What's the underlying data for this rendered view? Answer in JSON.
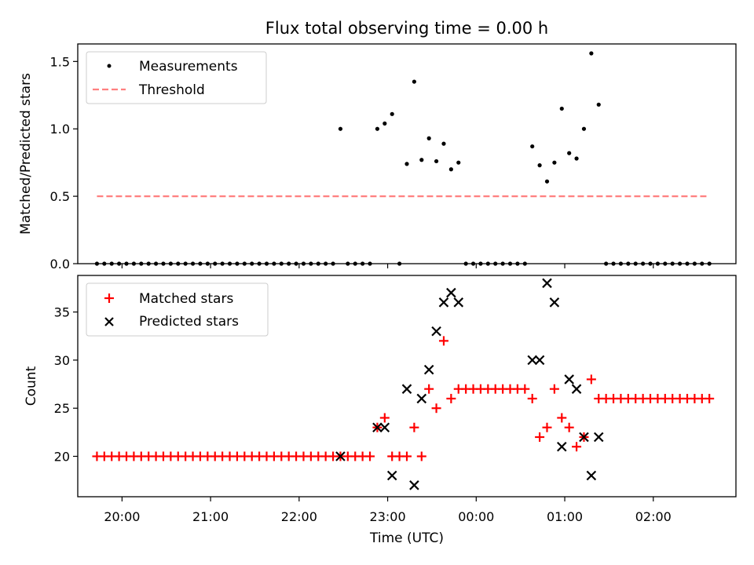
{
  "title": "Flux total observing time = 0.00 h",
  "xlabel": "Time (UTC)",
  "x_ticks": [
    "20:00",
    "21:00",
    "22:00",
    "23:00",
    "00:00",
    "01:00",
    "02:00"
  ],
  "x_range": [
    "19:30",
    "02:56"
  ],
  "chart_data": [
    {
      "type": "scatter",
      "ylabel": "Matched/Predicted stars",
      "ylim": [
        0,
        1.63
      ],
      "yticks": [
        "0.0",
        "0.5",
        "1.0",
        "1.5"
      ],
      "legend_position": "upper-left",
      "grid": false,
      "series": [
        {
          "name": "Measurements",
          "marker": "dot",
          "color": "#000000",
          "points": [
            [
              "19:43",
              0
            ],
            [
              "19:48",
              0
            ],
            [
              "19:53",
              0
            ],
            [
              "19:58",
              0
            ],
            [
              "20:03",
              0
            ],
            [
              "20:08",
              0
            ],
            [
              "20:13",
              0
            ],
            [
              "20:18",
              0
            ],
            [
              "20:23",
              0
            ],
            [
              "20:28",
              0
            ],
            [
              "20:33",
              0
            ],
            [
              "20:38",
              0
            ],
            [
              "20:43",
              0
            ],
            [
              "20:48",
              0
            ],
            [
              "20:53",
              0
            ],
            [
              "20:58",
              0
            ],
            [
              "21:03",
              0
            ],
            [
              "21:08",
              0
            ],
            [
              "21:13",
              0
            ],
            [
              "21:18",
              0
            ],
            [
              "21:23",
              0
            ],
            [
              "21:28",
              0
            ],
            [
              "21:33",
              0
            ],
            [
              "21:38",
              0
            ],
            [
              "21:43",
              0
            ],
            [
              "21:48",
              0
            ],
            [
              "21:53",
              0
            ],
            [
              "21:58",
              0
            ],
            [
              "22:03",
              0
            ],
            [
              "22:08",
              0
            ],
            [
              "22:13",
              0
            ],
            [
              "22:18",
              0
            ],
            [
              "22:23",
              0
            ],
            [
              "22:28",
              1.0
            ],
            [
              "22:33",
              0
            ],
            [
              "22:38",
              0
            ],
            [
              "22:43",
              0
            ],
            [
              "22:48",
              0
            ],
            [
              "22:53",
              1.0
            ],
            [
              "22:58",
              1.04
            ],
            [
              "23:03",
              1.11
            ],
            [
              "23:08",
              0
            ],
            [
              "23:13",
              0.74
            ],
            [
              "23:18",
              1.35
            ],
            [
              "23:23",
              0.77
            ],
            [
              "23:28",
              0.93
            ],
            [
              "23:33",
              0.76
            ],
            [
              "23:38",
              0.89
            ],
            [
              "23:43",
              0.7
            ],
            [
              "23:48",
              0.75
            ],
            [
              "23:53",
              0
            ],
            [
              "23:58",
              0
            ],
            [
              "00:03",
              0
            ],
            [
              "00:08",
              0
            ],
            [
              "00:13",
              0
            ],
            [
              "00:18",
              0
            ],
            [
              "00:23",
              0
            ],
            [
              "00:28",
              0
            ],
            [
              "00:33",
              0
            ],
            [
              "00:38",
              0.87
            ],
            [
              "00:43",
              0.73
            ],
            [
              "00:48",
              0.61
            ],
            [
              "00:53",
              0.75
            ],
            [
              "00:58",
              1.15
            ],
            [
              "01:03",
              0.82
            ],
            [
              "01:08",
              0.78
            ],
            [
              "01:13",
              1.0
            ],
            [
              "01:18",
              1.56
            ],
            [
              "01:23",
              1.18
            ],
            [
              "01:28",
              0
            ],
            [
              "01:33",
              0
            ],
            [
              "01:38",
              0
            ],
            [
              "01:43",
              0
            ],
            [
              "01:48",
              0
            ],
            [
              "01:53",
              0
            ],
            [
              "01:58",
              0
            ],
            [
              "02:03",
              0
            ],
            [
              "02:08",
              0
            ],
            [
              "02:13",
              0
            ],
            [
              "02:18",
              0
            ],
            [
              "02:23",
              0
            ],
            [
              "02:28",
              0
            ],
            [
              "02:33",
              0
            ],
            [
              "02:38",
              0
            ]
          ]
        },
        {
          "name": "Threshold",
          "style": "dashed-line",
          "color": "#ff7f7f",
          "points": [
            [
              "19:43",
              0.5
            ],
            [
              "02:38",
              0.5
            ]
          ]
        }
      ]
    },
    {
      "type": "scatter",
      "ylabel": "Count",
      "ylim": [
        15.8,
        38.8
      ],
      "yticks": [
        "20",
        "25",
        "30",
        "35"
      ],
      "legend_position": "upper-left",
      "grid": false,
      "series": [
        {
          "name": "Matched stars",
          "marker": "plus",
          "color": "#ff0000",
          "points": [
            [
              "19:43",
              20
            ],
            [
              "19:48",
              20
            ],
            [
              "19:53",
              20
            ],
            [
              "19:58",
              20
            ],
            [
              "20:03",
              20
            ],
            [
              "20:08",
              20
            ],
            [
              "20:13",
              20
            ],
            [
              "20:18",
              20
            ],
            [
              "20:23",
              20
            ],
            [
              "20:28",
              20
            ],
            [
              "20:33",
              20
            ],
            [
              "20:38",
              20
            ],
            [
              "20:43",
              20
            ],
            [
              "20:48",
              20
            ],
            [
              "20:53",
              20
            ],
            [
              "20:58",
              20
            ],
            [
              "21:03",
              20
            ],
            [
              "21:08",
              20
            ],
            [
              "21:13",
              20
            ],
            [
              "21:18",
              20
            ],
            [
              "21:23",
              20
            ],
            [
              "21:28",
              20
            ],
            [
              "21:33",
              20
            ],
            [
              "21:38",
              20
            ],
            [
              "21:43",
              20
            ],
            [
              "21:48",
              20
            ],
            [
              "21:53",
              20
            ],
            [
              "21:58",
              20
            ],
            [
              "22:03",
              20
            ],
            [
              "22:08",
              20
            ],
            [
              "22:13",
              20
            ],
            [
              "22:18",
              20
            ],
            [
              "22:23",
              20
            ],
            [
              "22:28",
              20
            ],
            [
              "22:33",
              20
            ],
            [
              "22:38",
              20
            ],
            [
              "22:43",
              20
            ],
            [
              "22:48",
              20
            ],
            [
              "22:53",
              23
            ],
            [
              "22:58",
              24
            ],
            [
              "23:03",
              20
            ],
            [
              "23:08",
              20
            ],
            [
              "23:13",
              20
            ],
            [
              "23:18",
              23
            ],
            [
              "23:23",
              20
            ],
            [
              "23:28",
              27
            ],
            [
              "23:33",
              25
            ],
            [
              "23:38",
              32
            ],
            [
              "23:43",
              26
            ],
            [
              "23:48",
              27
            ],
            [
              "23:53",
              27
            ],
            [
              "23:58",
              27
            ],
            [
              "00:03",
              27
            ],
            [
              "00:08",
              27
            ],
            [
              "00:13",
              27
            ],
            [
              "00:18",
              27
            ],
            [
              "00:23",
              27
            ],
            [
              "00:28",
              27
            ],
            [
              "00:33",
              27
            ],
            [
              "00:38",
              26
            ],
            [
              "00:43",
              22
            ],
            [
              "00:48",
              23
            ],
            [
              "00:53",
              27
            ],
            [
              "00:58",
              24
            ],
            [
              "01:03",
              23
            ],
            [
              "01:08",
              21
            ],
            [
              "01:13",
              22
            ],
            [
              "01:18",
              28
            ],
            [
              "01:23",
              26
            ],
            [
              "01:28",
              26
            ],
            [
              "01:33",
              26
            ],
            [
              "01:38",
              26
            ],
            [
              "01:43",
              26
            ],
            [
              "01:48",
              26
            ],
            [
              "01:53",
              26
            ],
            [
              "01:58",
              26
            ],
            [
              "02:03",
              26
            ],
            [
              "02:08",
              26
            ],
            [
              "02:13",
              26
            ],
            [
              "02:18",
              26
            ],
            [
              "02:23",
              26
            ],
            [
              "02:28",
              26
            ],
            [
              "02:33",
              26
            ],
            [
              "02:38",
              26
            ]
          ]
        },
        {
          "name": "Predicted stars",
          "marker": "x",
          "color": "#000000",
          "points": [
            [
              "22:28",
              20
            ],
            [
              "22:53",
              23
            ],
            [
              "22:58",
              23
            ],
            [
              "23:03",
              18
            ],
            [
              "23:13",
              27
            ],
            [
              "23:18",
              17
            ],
            [
              "23:23",
              26
            ],
            [
              "23:28",
              29
            ],
            [
              "23:33",
              33
            ],
            [
              "23:38",
              36
            ],
            [
              "23:43",
              37
            ],
            [
              "23:48",
              36
            ],
            [
              "00:38",
              30
            ],
            [
              "00:43",
              30
            ],
            [
              "00:48",
              38
            ],
            [
              "00:53",
              36
            ],
            [
              "00:58",
              21
            ],
            [
              "01:03",
              28
            ],
            [
              "01:08",
              27
            ],
            [
              "01:13",
              22
            ],
            [
              "01:18",
              18
            ],
            [
              "01:23",
              22
            ]
          ]
        }
      ]
    }
  ]
}
